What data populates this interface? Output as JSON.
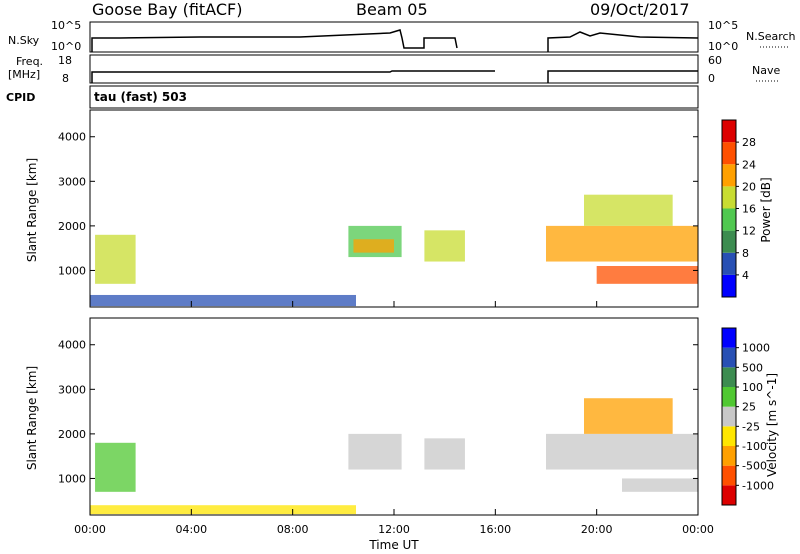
{
  "header": {
    "station": "Goose Bay (fitACF)",
    "beam": "Beam 05",
    "date": "09/Oct/2017"
  },
  "side_labels": {
    "nsky": "N.Sky",
    "freq_line1": "Freq.",
    "freq_line2": "[MHz]",
    "cpid": "CPID",
    "nsearch": "N.Search",
    "nave": "Nave"
  },
  "cpid_text": "tau (fast) 503",
  "noise_axis": {
    "left_top": "10^5",
    "left_bottom": "10^0",
    "right_top": "10^5",
    "right_bottom": "10^0"
  },
  "freq_axis": {
    "left_top": "18",
    "left_bottom": "8",
    "right_top": "60",
    "right_bottom": "0"
  },
  "colors": {
    "power_scale": [
      "#0000ff",
      "#2850b4",
      "#3c8c50",
      "#50c850",
      "#c8dc32",
      "#ffa000",
      "#ff5000",
      "#dc0000"
    ],
    "velocity_scale": [
      "#dc0000",
      "#ff5000",
      "#ffa000",
      "#ffe600",
      "#c8c8c8",
      "#50c832",
      "#3c8c50",
      "#2850b4",
      "#0000ff"
    ]
  },
  "chart_data": [
    {
      "type": "heatmap",
      "name": "power",
      "ylabel": "Slant Range [km]",
      "x_range_hours": [
        0,
        24
      ],
      "ylim_km": [
        180,
        4600
      ],
      "yticks": [
        "1000",
        "2000",
        "3000",
        "4000"
      ],
      "colorbar_label": "Power [dB]",
      "colorbar_ticks": [
        "4",
        "8",
        "12",
        "16",
        "20",
        "24",
        "28"
      ],
      "regions": [
        {
          "t0": 0.2,
          "t1": 1.8,
          "r0": 700,
          "r1": 1800,
          "level": 4
        },
        {
          "t0": 0.0,
          "t1": 10.5,
          "r0": 200,
          "r1": 450,
          "level": 1
        },
        {
          "t0": 10.2,
          "t1": 12.3,
          "r0": 1300,
          "r1": 2000,
          "level": 3
        },
        {
          "t0": 10.4,
          "t1": 12.0,
          "r0": 1400,
          "r1": 1700,
          "level": 5
        },
        {
          "t0": 13.2,
          "t1": 14.8,
          "r0": 1200,
          "r1": 1900,
          "level": 4
        },
        {
          "t0": 18.0,
          "t1": 24.0,
          "r0": 1200,
          "r1": 2000,
          "level": 5
        },
        {
          "t0": 20.0,
          "t1": 24.0,
          "r0": 700,
          "r1": 1100,
          "level": 6
        },
        {
          "t0": 19.5,
          "t1": 23.0,
          "r0": 2000,
          "r1": 2700,
          "level": 4
        }
      ]
    },
    {
      "type": "heatmap",
      "name": "velocity",
      "ylabel": "Slant Range [km]",
      "xlabel": "Time UT",
      "x_range_hours": [
        0,
        24
      ],
      "xticks": [
        "00:00",
        "04:00",
        "08:00",
        "12:00",
        "16:00",
        "20:00",
        "00:00"
      ],
      "ylim_km": [
        180,
        4600
      ],
      "yticks": [
        "1000",
        "2000",
        "3000",
        "4000"
      ],
      "colorbar_label": "Velocity [m s^-1]",
      "colorbar_ticks": [
        "-1000",
        "-500",
        "-100",
        "-25",
        "25",
        "100",
        "500",
        "1000"
      ],
      "regions": [
        {
          "t0": 0.2,
          "t1": 1.8,
          "r0": 700,
          "r1": 1800,
          "level": 5
        },
        {
          "t0": 0.0,
          "t1": 10.5,
          "r0": 200,
          "r1": 400,
          "level": 3
        },
        {
          "t0": 10.2,
          "t1": 12.3,
          "r0": 1200,
          "r1": 2000,
          "level": 4
        },
        {
          "t0": 13.2,
          "t1": 14.8,
          "r0": 1200,
          "r1": 1900,
          "level": 4
        },
        {
          "t0": 18.0,
          "t1": 24.0,
          "r0": 1200,
          "r1": 2000,
          "level": 4
        },
        {
          "t0": 19.5,
          "t1": 23.0,
          "r0": 2000,
          "r1": 2800,
          "level": 2
        },
        {
          "t0": 21.0,
          "t1": 24.0,
          "r0": 700,
          "r1": 1000,
          "level": 4
        }
      ]
    }
  ]
}
